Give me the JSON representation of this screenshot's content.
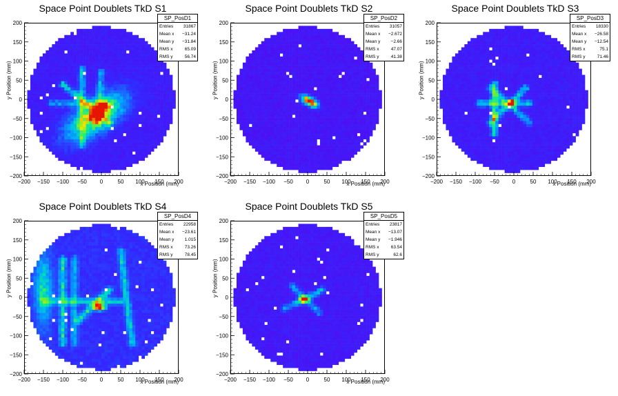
{
  "chart_data": [
    {
      "type": "heatmap",
      "id": "pad1",
      "title": "Space Point Doublets TkD S1",
      "xlabel": "x Position (mm)",
      "ylabel": "y Position (mm)",
      "xlim": [
        -200,
        200
      ],
      "ylim": [
        -200,
        200
      ],
      "xticks": [
        "-200",
        "-150",
        "-100",
        "-50",
        "0",
        "50",
        "100",
        "150",
        "200"
      ],
      "yticks": [
        "-200",
        "-150",
        "-100",
        "-50",
        "0",
        "50",
        "100",
        "150",
        "200"
      ],
      "stats": {
        "name": "SP_PosD1",
        "rows": [
          [
            "Entries",
            "31867"
          ],
          [
            "Mean x",
            "-31.24"
          ],
          [
            "Mean y",
            "-31.84"
          ],
          [
            "RMS x",
            "65.09"
          ],
          [
            "RMS y",
            "56.74"
          ]
        ]
      },
      "hot": [
        {
          "x": -15,
          "y": -45,
          "w": 55,
          "amp": 0.55,
          "angle": 35,
          "len": 120
        },
        {
          "x": -5,
          "y": -30,
          "w": 18,
          "amp": 0.95,
          "angle": 35,
          "len": 40
        }
      ],
      "lines": [
        {
          "x1": -100,
          "y1": 40,
          "x2": 20,
          "y2": -60,
          "amp": 0.35
        },
        {
          "x1": -50,
          "y1": 80,
          "x2": -50,
          "y2": -120,
          "amp": 0.3
        },
        {
          "x1": -130,
          "y1": -10,
          "x2": 0,
          "y2": -10,
          "amp": 0.25
        },
        {
          "x1": 0,
          "y1": 70,
          "x2": -10,
          "y2": -60,
          "amp": 0.3
        }
      ],
      "bg": 0.08
    },
    {
      "type": "heatmap",
      "id": "pad2",
      "title": "Space Point Doublets TkD S2",
      "xlabel": "x Position (mm)",
      "ylabel": "y Position (mm)",
      "xlim": [
        -200,
        200
      ],
      "ylim": [
        -200,
        200
      ],
      "xticks": [
        "-200",
        "-150",
        "-100",
        "-50",
        "0",
        "50",
        "100",
        "150",
        "200"
      ],
      "yticks": [
        "-200",
        "-150",
        "-100",
        "-50",
        "0",
        "50",
        "100",
        "150",
        "200"
      ],
      "stats": {
        "name": "SP_PosD2",
        "rows": [
          [
            "Entries",
            "31057"
          ],
          [
            "Mean x",
            "-2.672"
          ],
          [
            "Mean y",
            "-2.66"
          ],
          [
            "RMS x",
            "47.07"
          ],
          [
            "RMS y",
            "41.38"
          ]
        ]
      },
      "hot": [
        {
          "x": 5,
          "y": -5,
          "w": 14,
          "amp": 1.0,
          "angle": -30,
          "len": 30
        }
      ],
      "lines": [],
      "bg": 0.06
    },
    {
      "type": "heatmap",
      "id": "pad3",
      "title": "Space Point Doublets TkD S3",
      "xlabel": "x Position (mm)",
      "ylabel": "y Position (mm)",
      "xlim": [
        -200,
        200
      ],
      "ylim": [
        -200,
        200
      ],
      "xticks": [
        "-200",
        "-150",
        "-100",
        "-50",
        "0",
        "50",
        "100",
        "150",
        "200"
      ],
      "yticks": [
        "-200",
        "-150",
        "-100",
        "-50",
        "0",
        "50",
        "100",
        "150",
        "200"
      ],
      "stats": {
        "name": "SP_PosD3",
        "rows": [
          [
            "Entries",
            "18330"
          ],
          [
            "Mean x",
            "-26.58"
          ],
          [
            "Mean y",
            "-12.54"
          ],
          [
            "RMS x",
            "75.1"
          ],
          [
            "RMS y",
            "71.46"
          ]
        ]
      },
      "hot": [
        {
          "x": -5,
          "y": -10,
          "w": 10,
          "amp": 0.95,
          "angle": 0,
          "len": 10
        }
      ],
      "lines": [
        {
          "x1": -50,
          "y1": 40,
          "x2": -50,
          "y2": -90,
          "amp": 0.4
        },
        {
          "x1": -90,
          "y1": -10,
          "x2": 40,
          "y2": -10,
          "amp": 0.35
        },
        {
          "x1": -60,
          "y1": -60,
          "x2": 30,
          "y2": 30,
          "amp": 0.35
        },
        {
          "x1": -60,
          "y1": 30,
          "x2": 40,
          "y2": -60,
          "amp": 0.3
        }
      ],
      "bg": 0.08
    },
    {
      "type": "heatmap",
      "id": "pad4",
      "title": "Space Point Doublets TkD S4",
      "xlabel": "x Position (mm)",
      "ylabel": "y Position (mm)",
      "xlim": [
        -200,
        200
      ],
      "ylim": [
        -200,
        200
      ],
      "xticks": [
        "-200",
        "-150",
        "-100",
        "-50",
        "0",
        "50",
        "100",
        "150",
        "200"
      ],
      "yticks": [
        "-200",
        "-150",
        "-100",
        "-50",
        "0",
        "50",
        "100",
        "150",
        "200"
      ],
      "stats": {
        "name": "SP_PosD4",
        "rows": [
          [
            "Entries",
            "22958"
          ],
          [
            "Mean x",
            "-23.61"
          ],
          [
            "Mean y",
            "1.015"
          ],
          [
            "RMS x",
            "73.26"
          ],
          [
            "RMS y",
            "78.45"
          ]
        ]
      },
      "hot": [
        {
          "x": -5,
          "y": -25,
          "w": 12,
          "amp": 0.9,
          "angle": 0,
          "len": 20
        },
        {
          "x": -150,
          "y": 20,
          "w": 30,
          "amp": 0.35,
          "angle": 90,
          "len": 120
        }
      ],
      "lines": [
        {
          "x1": -100,
          "y1": 100,
          "x2": -100,
          "y2": -120,
          "amp": 0.35
        },
        {
          "x1": -150,
          "y1": -10,
          "x2": 50,
          "y2": -10,
          "amp": 0.3
        },
        {
          "x1": -60,
          "y1": -60,
          "x2": 20,
          "y2": 20,
          "amp": 0.35
        },
        {
          "x1": 50,
          "y1": 120,
          "x2": 80,
          "y2": -120,
          "amp": 0.3
        },
        {
          "x1": -70,
          "y1": 100,
          "x2": -70,
          "y2": -120,
          "amp": 0.25
        }
      ],
      "bg": 0.13
    },
    {
      "type": "heatmap",
      "id": "pad5",
      "title": "Space Point Doublets TkD S5",
      "xlabel": "x Position (mm)",
      "ylabel": "y Position (mm)",
      "xlim": [
        -200,
        200
      ],
      "ylim": [
        -200,
        200
      ],
      "xticks": [
        "-200",
        "-150",
        "-100",
        "-50",
        "0",
        "50",
        "100",
        "150",
        "200"
      ],
      "yticks": [
        "-200",
        "-150",
        "-100",
        "-50",
        "0",
        "50",
        "100",
        "150",
        "200"
      ],
      "stats": {
        "name": "SP_PosD5",
        "rows": [
          [
            "Entries",
            "23817"
          ],
          [
            "Mean x",
            "-13.07"
          ],
          [
            "Mean y",
            "-1.946"
          ],
          [
            "RMS x",
            "63.54"
          ],
          [
            "RMS y",
            "62.6"
          ]
        ]
      },
      "hot": [
        {
          "x": -10,
          "y": -5,
          "w": 12,
          "amp": 1.0,
          "angle": 0,
          "len": 15
        }
      ],
      "lines": [
        {
          "x1": -60,
          "y1": -30,
          "x2": 40,
          "y2": 20,
          "amp": 0.3
        },
        {
          "x1": -40,
          "y1": 30,
          "x2": 30,
          "y2": -40,
          "amp": 0.25
        }
      ],
      "bg": 0.07
    }
  ]
}
